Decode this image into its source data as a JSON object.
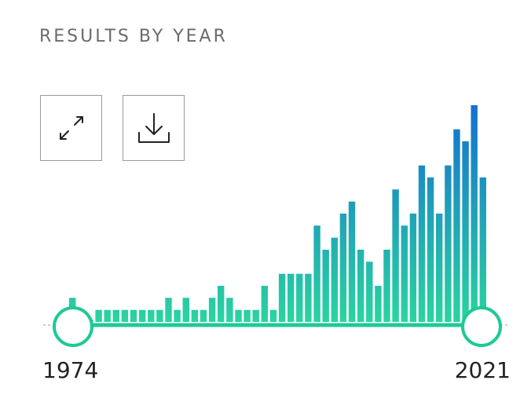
{
  "header": {
    "title": "RESULTS BY YEAR"
  },
  "toolbar": {
    "expand_icon": "expand-icon",
    "download_icon": "download-icon"
  },
  "colors": {
    "bar_low": "#2ad4a0",
    "bar_high": "#1570d0",
    "track": "#1ec995",
    "handle_fill": "#ffffff"
  },
  "range": {
    "start_label": "1974",
    "end_label": "2021"
  },
  "chart_data": {
    "type": "bar",
    "x": [
      1974,
      1975,
      1976,
      1977,
      1978,
      1979,
      1980,
      1981,
      1982,
      1983,
      1984,
      1985,
      1986,
      1987,
      1988,
      1989,
      1990,
      1991,
      1992,
      1993,
      1994,
      1995,
      1996,
      1997,
      1998,
      1999,
      2000,
      2001,
      2002,
      2003,
      2004,
      2005,
      2006,
      2007,
      2008,
      2009,
      2010,
      2011,
      2012,
      2013,
      2014,
      2015,
      2016,
      2017,
      2018,
      2019,
      2020,
      2021
    ],
    "values": [
      2,
      1,
      0,
      1,
      1,
      1,
      1,
      1,
      1,
      1,
      1,
      2,
      1,
      2,
      1,
      1,
      2,
      3,
      2,
      1,
      1,
      1,
      3,
      1,
      4,
      4,
      4,
      4,
      8,
      6,
      7,
      9,
      10,
      6,
      5,
      3,
      6,
      11,
      8,
      9,
      13,
      12,
      9,
      13,
      16,
      15,
      18,
      12
    ],
    "ylim": [
      0,
      18
    ]
  }
}
